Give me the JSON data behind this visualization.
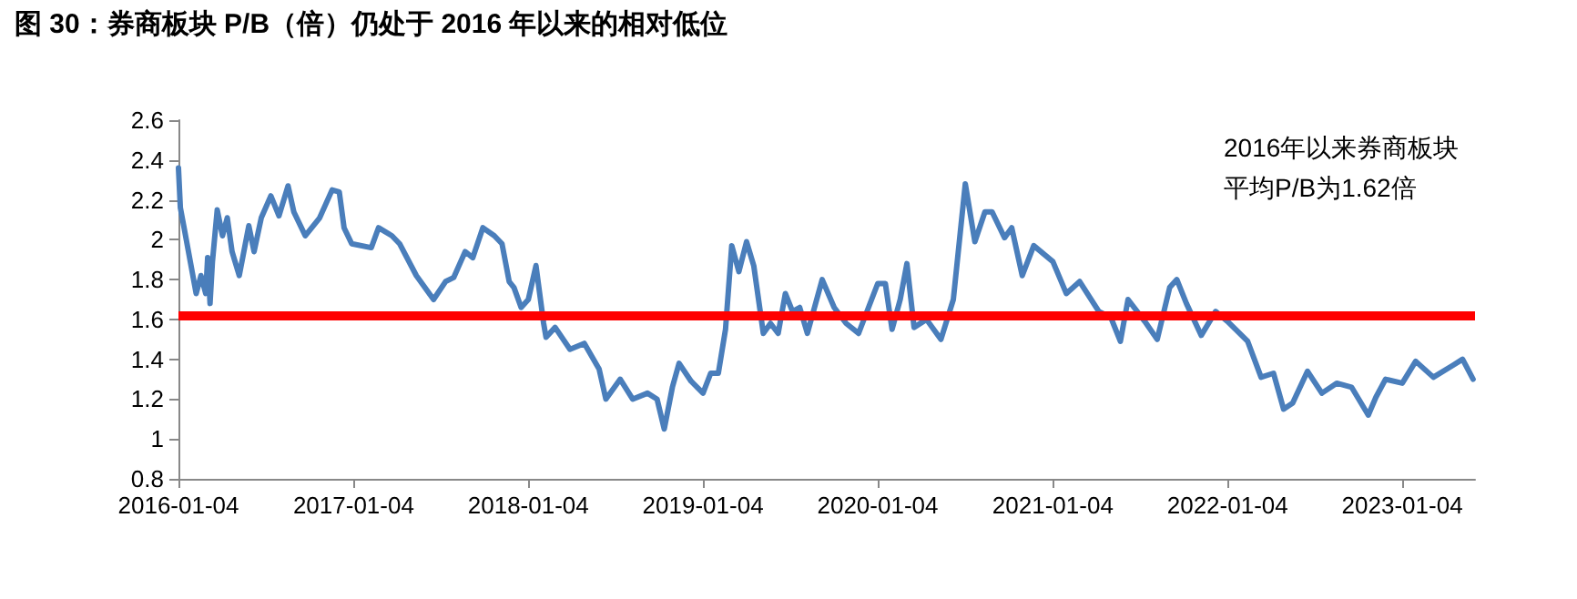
{
  "chart_data": {
    "type": "line",
    "title": "图 30：券商板块 P/B（倍）仍处于 2016 年以来的相对低位",
    "annotations": [
      "2016年以来券商板块",
      "平均P/B为1.62倍"
    ],
    "xlim": [
      "2016-01-04",
      "2023-06-05"
    ],
    "xticks": [
      "2016-01-04",
      "2017-01-04",
      "2018-01-04",
      "2019-01-04",
      "2020-01-04",
      "2021-01-04",
      "2022-01-04",
      "2023-01-04"
    ],
    "ylim": [
      0.8,
      2.6
    ],
    "yticks": [
      0.8,
      1,
      1.2,
      1.4,
      1.6,
      1.8,
      2,
      2.2,
      2.4,
      2.6
    ],
    "grid": false,
    "marker": "none",
    "line_style": "solid",
    "ref_lines": [
      {
        "axis": "y",
        "value": 1.62,
        "color": "#ff0000"
      }
    ],
    "series": [
      {
        "color": "#4a7ebb",
        "x": [
          "2016-01-04",
          "2016-01-08",
          "2016-01-15",
          "2016-02-10",
          "2016-02-20",
          "2016-03-01",
          "2016-03-05",
          "2016-03-10",
          "2016-03-15",
          "2016-03-25",
          "2016-04-05",
          "2016-04-15",
          "2016-04-25",
          "2016-05-10",
          "2016-05-30",
          "2016-06-10",
          "2016-06-25",
          "2016-07-15",
          "2016-08-01",
          "2016-08-20",
          "2016-09-01",
          "2016-09-25",
          "2016-10-25",
          "2016-11-20",
          "2016-12-05",
          "2016-12-15",
          "2016-12-31",
          "2017-02-10",
          "2017-02-25",
          "2017-03-25",
          "2017-04-10",
          "2017-05-15",
          "2017-06-20",
          "2017-07-15",
          "2017-08-01",
          "2017-08-25",
          "2017-09-10",
          "2017-10-01",
          "2017-10-25",
          "2017-11-10",
          "2017-11-25",
          "2017-12-05",
          "2017-12-20",
          "2018-01-04",
          "2018-01-20",
          "2018-02-05",
          "2018-02-10",
          "2018-03-01",
          "2018-04-01",
          "2018-05-01",
          "2018-06-01",
          "2018-06-15",
          "2018-07-15",
          "2018-08-10",
          "2018-09-10",
          "2018-09-30",
          "2018-10-15",
          "2018-11-01",
          "2018-11-15",
          "2018-12-10",
          "2019-01-04",
          "2019-01-20",
          "2019-02-05",
          "2019-02-20",
          "2019-03-05",
          "2019-03-20",
          "2019-04-05",
          "2019-04-20",
          "2019-05-10",
          "2019-05-25",
          "2019-06-10",
          "2019-06-25",
          "2019-07-10",
          "2019-07-25",
          "2019-08-10",
          "2019-09-10",
          "2019-10-05",
          "2019-10-30",
          "2019-11-25",
          "2020-01-04",
          "2020-01-20",
          "2020-02-03",
          "2020-02-20",
          "2020-03-05",
          "2020-03-20",
          "2020-04-15",
          "2020-05-15",
          "2020-06-10",
          "2020-07-05",
          "2020-07-25",
          "2020-08-15",
          "2020-08-30",
          "2020-09-25",
          "2020-10-10",
          "2020-11-01",
          "2020-11-25",
          "2021-01-04",
          "2021-02-01",
          "2021-03-01",
          "2021-04-10",
          "2021-05-05",
          "2021-05-25",
          "2021-06-10",
          "2021-07-15",
          "2021-08-10",
          "2021-09-05",
          "2021-09-20",
          "2021-10-10",
          "2021-11-10",
          "2021-12-10",
          "2022-01-04",
          "2022-02-15",
          "2022-03-15",
          "2022-04-10",
          "2022-05-01",
          "2022-05-20",
          "2022-06-20",
          "2022-07-20",
          "2022-08-20",
          "2022-09-20",
          "2022-10-25",
          "2022-11-10",
          "2022-11-30",
          "2023-01-04",
          "2023-02-01",
          "2023-03-10",
          "2023-04-20",
          "2023-05-10",
          "2023-06-01"
        ],
        "values": [
          2.36,
          2.16,
          2.07,
          1.73,
          1.82,
          1.73,
          1.91,
          1.68,
          1.89,
          2.15,
          2.02,
          2.11,
          1.94,
          1.82,
          2.07,
          1.94,
          2.11,
          2.22,
          2.12,
          2.27,
          2.14,
          2.02,
          2.11,
          2.25,
          2.24,
          2.06,
          1.98,
          1.96,
          2.06,
          2.02,
          1.98,
          1.82,
          1.7,
          1.79,
          1.81,
          1.94,
          1.91,
          2.06,
          2.02,
          1.98,
          1.79,
          1.76,
          1.66,
          1.7,
          1.87,
          1.58,
          1.51,
          1.56,
          1.45,
          1.48,
          1.35,
          1.2,
          1.3,
          1.2,
          1.23,
          1.2,
          1.05,
          1.26,
          1.38,
          1.29,
          1.23,
          1.33,
          1.33,
          1.55,
          1.97,
          1.84,
          1.99,
          1.87,
          1.53,
          1.58,
          1.53,
          1.73,
          1.64,
          1.66,
          1.53,
          1.8,
          1.66,
          1.58,
          1.53,
          1.78,
          1.78,
          1.55,
          1.7,
          1.88,
          1.56,
          1.6,
          1.5,
          1.7,
          2.28,
          1.99,
          2.14,
          2.14,
          2.01,
          2.06,
          1.82,
          1.97,
          1.89,
          1.73,
          1.79,
          1.64,
          1.61,
          1.49,
          1.7,
          1.59,
          1.5,
          1.76,
          1.8,
          1.68,
          1.52,
          1.64,
          1.59,
          1.49,
          1.31,
          1.33,
          1.15,
          1.18,
          1.34,
          1.23,
          1.28,
          1.26,
          1.12,
          1.21,
          1.3,
          1.28,
          1.39,
          1.31,
          1.37,
          1.4,
          1.3
        ]
      }
    ]
  }
}
